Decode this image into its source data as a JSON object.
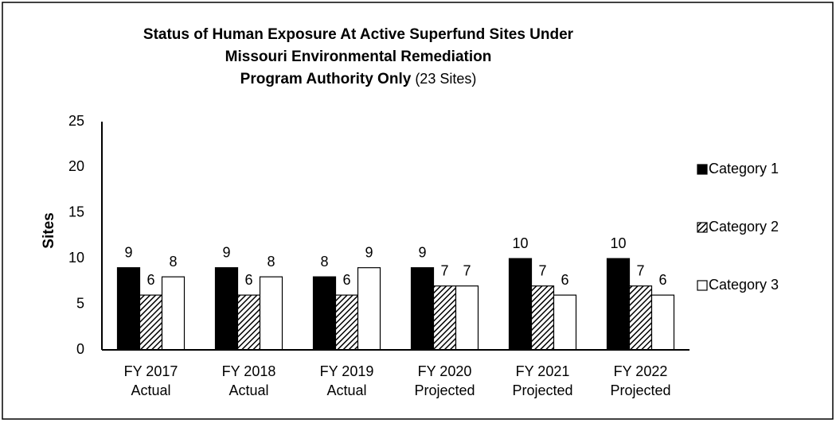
{
  "chart_data": {
    "type": "bar",
    "title": [
      "Status of Human Exposure At Active Superfund Sites Under",
      "Missouri Environmental Remediation",
      "Program Authority Only"
    ],
    "subtitle": "(23 Sites)",
    "y_label": "Sites",
    "categories": [
      [
        "FY 2017",
        "Actual"
      ],
      [
        "FY 2018",
        "Actual"
      ],
      [
        "FY 2019",
        "Actual"
      ],
      [
        "FY 2020",
        "Projected"
      ],
      [
        "FY 2021",
        "Projected"
      ],
      [
        "FY 2022",
        "Projected"
      ]
    ],
    "series": [
      {
        "name": "Category 1",
        "color": "#000000",
        "values": [
          9,
          9,
          8,
          9,
          10,
          10
        ]
      },
      {
        "name": "Category 2",
        "color": "#000000",
        "pattern": "diagonal-hatch",
        "values": [
          6,
          6,
          6,
          7,
          7,
          7
        ]
      },
      {
        "name": "Category 3",
        "color": "#ffffff",
        "values": [
          8,
          8,
          9,
          7,
          6,
          6
        ]
      }
    ],
    "ylim": [
      0,
      25
    ],
    "yticks": [
      0,
      5,
      10,
      15,
      20,
      25
    ],
    "grid": false,
    "legend": "right"
  }
}
